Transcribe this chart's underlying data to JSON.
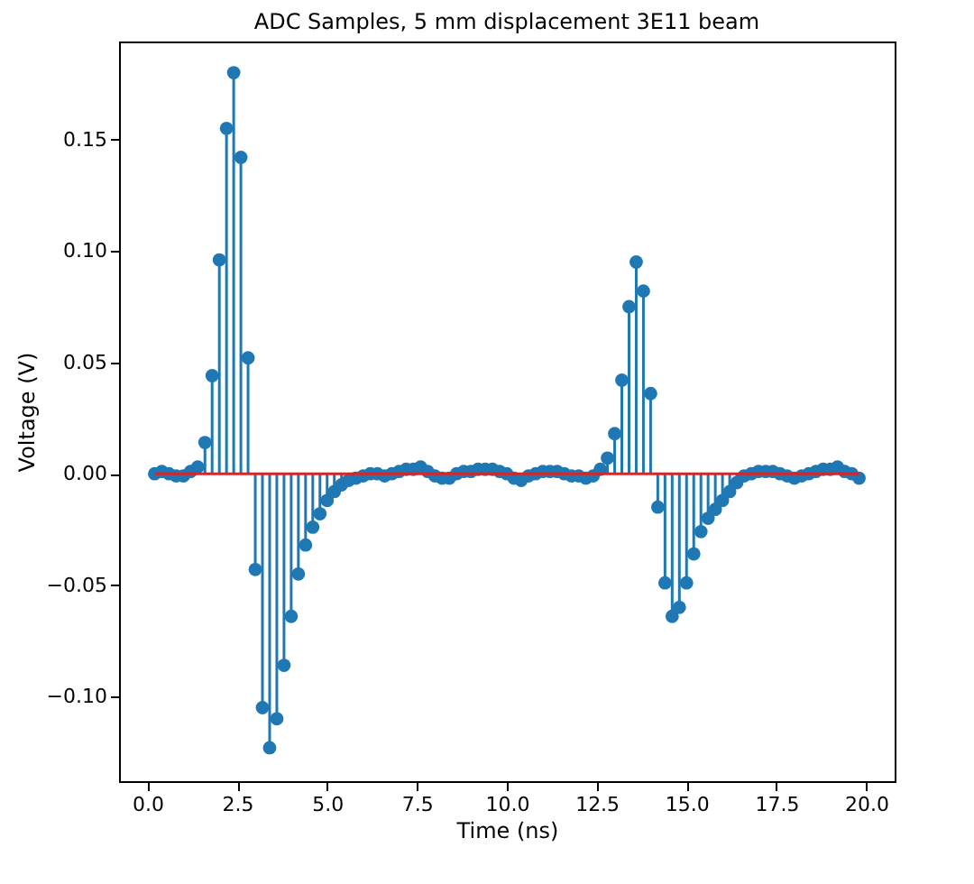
{
  "chart_data": {
    "type": "lollipop",
    "title": "ADC Samples, 5 mm displacement 3E11 beam",
    "xlabel": "Time (ns)",
    "ylabel": "Voltage (V)",
    "x": [
      0.2,
      0.4,
      0.6,
      0.8,
      1.0,
      1.2,
      1.4,
      1.6,
      1.8,
      2.0,
      2.2,
      2.4,
      2.6,
      2.8,
      3.0,
      3.2,
      3.4,
      3.6,
      3.8,
      4.0,
      4.2,
      4.4,
      4.6,
      4.8,
      5.0,
      5.2,
      5.4,
      5.6,
      5.8,
      6.0,
      6.2,
      6.4,
      6.6,
      6.8,
      7.0,
      7.2,
      7.4,
      7.6,
      7.8,
      8.0,
      8.2,
      8.4,
      8.6,
      8.8,
      9.0,
      9.2,
      9.4,
      9.6,
      9.8,
      10.0,
      10.2,
      10.4,
      10.6,
      10.8,
      11.0,
      11.2,
      11.4,
      11.6,
      11.8,
      12.0,
      12.2,
      12.4,
      12.6,
      12.8,
      13.0,
      13.2,
      13.4,
      13.6,
      13.8,
      14.0,
      14.2,
      14.4,
      14.6,
      14.8,
      15.0,
      15.2,
      15.4,
      15.6,
      15.8,
      16.0,
      16.2,
      16.4,
      16.6,
      16.8,
      17.0,
      17.2,
      17.4,
      17.6,
      17.8,
      18.0,
      18.2,
      18.4,
      18.6,
      18.8,
      19.0,
      19.2,
      19.4,
      19.6,
      19.8
    ],
    "series": [
      {
        "color": "#1f77b4",
        "values": [
          0.0,
          0.001,
          0.0,
          -0.001,
          -0.001,
          0.001,
          0.003,
          0.014,
          0.044,
          0.096,
          0.155,
          0.18,
          0.142,
          0.052,
          -0.043,
          -0.105,
          -0.123,
          -0.11,
          -0.086,
          -0.064,
          -0.045,
          -0.032,
          -0.024,
          -0.018,
          -0.012,
          -0.008,
          -0.005,
          -0.003,
          -0.002,
          -0.001,
          0.0,
          0.0,
          -0.001,
          0.0,
          0.001,
          0.002,
          0.002,
          0.003,
          0.001,
          -0.001,
          -0.002,
          -0.002,
          0.0,
          0.001,
          0.001,
          0.002,
          0.002,
          0.002,
          0.001,
          0.0,
          -0.002,
          -0.003,
          -0.001,
          0.0,
          0.001,
          0.001,
          0.001,
          0.0,
          -0.001,
          -0.001,
          -0.002,
          -0.001,
          0.002,
          0.007,
          0.018,
          0.042,
          0.075,
          0.095,
          0.082,
          0.036,
          -0.015,
          -0.049,
          -0.064,
          -0.06,
          -0.049,
          -0.036,
          -0.026,
          -0.02,
          -0.016,
          -0.012,
          -0.008,
          -0.004,
          -0.001,
          0.0,
          0.001,
          0.001,
          0.001,
          0.0,
          -0.001,
          -0.002,
          -0.001,
          0.0,
          0.001,
          0.002,
          0.002,
          0.003,
          0.001,
          0.0,
          -0.002
        ]
      }
    ],
    "ref_lines": [
      {
        "axis": "y",
        "value": 0,
        "color": "#d62728"
      }
    ],
    "marker": "circle",
    "xlim": [
      -0.79,
      20.79
    ],
    "xticks": [
      {
        "value": 0,
        "label": "0.0"
      },
      2.5,
      {
        "value": 5,
        "label": "5.0"
      },
      7.5,
      {
        "value": 10,
        "label": "10.0"
      },
      12.5,
      {
        "value": 15,
        "label": "15.0"
      },
      17.5,
      {
        "value": 20,
        "label": "20.0"
      }
    ],
    "ylim": [
      -0.138,
      0.194
    ],
    "yticks": [
      {
        "value": -0.1,
        "label": "−0.10"
      },
      {
        "value": -0.05,
        "label": "−0.05"
      },
      {
        "value": 0,
        "label": "0.00"
      },
      {
        "value": 0.05,
        "label": "0.05"
      },
      {
        "value": 0.1,
        "label": "0.10"
      },
      {
        "value": 0.15,
        "label": "0.15"
      }
    ]
  }
}
